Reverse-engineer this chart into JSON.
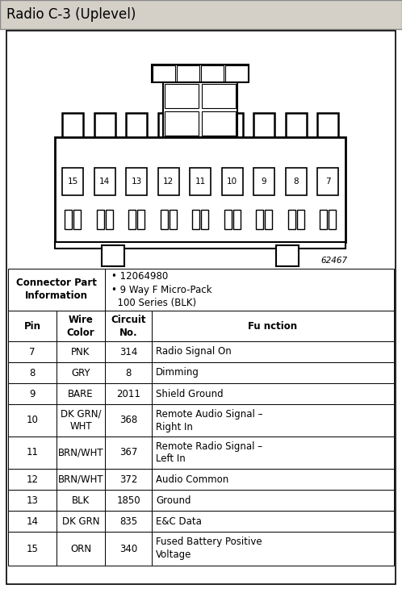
{
  "title": "Radio C-3 (Uplevel)",
  "title_bg": "#d4d0c8",
  "diagram_note": "62467",
  "col_headers": [
    "Pin",
    "Wire\nColor",
    "Circuit\nNo.",
    "Fu nction"
  ],
  "rows": [
    [
      "7",
      "PNK",
      "314",
      "Radio Signal On"
    ],
    [
      "8",
      "GRY",
      "8",
      "Dimming"
    ],
    [
      "9",
      "BARE",
      "2011",
      "Shield Ground"
    ],
    [
      "10",
      "DK GRN/\nWHT",
      "368",
      "Remote Audio Signal –\nRight In"
    ],
    [
      "11",
      "BRN/WHT",
      "367",
      "Remote Radio Signal –\nLeft In"
    ],
    [
      "12",
      "BRN/WHT",
      "372",
      "Audio Common"
    ],
    [
      "13",
      "BLK",
      "1850",
      "Ground"
    ],
    [
      "14",
      "DK GRN",
      "835",
      "E&C Data"
    ],
    [
      "15",
      "ORN",
      "340",
      "Fused Battery Positive\nVoltage"
    ]
  ],
  "pin_numbers": [
    15,
    14,
    13,
    12,
    11,
    10,
    9,
    8,
    7
  ],
  "connector_part_label": "Connector Part\nInformation",
  "specs_line1": "• 12064980",
  "specs_line2": "• 9 Way F Micro-Pack",
  "specs_line3": "  100 Series (BLK)",
  "outer_bg": "#ffffff",
  "border_color": "#000000",
  "title_fontsize": 12,
  "cell_fontsize": 8.5,
  "header_fontsize": 9
}
